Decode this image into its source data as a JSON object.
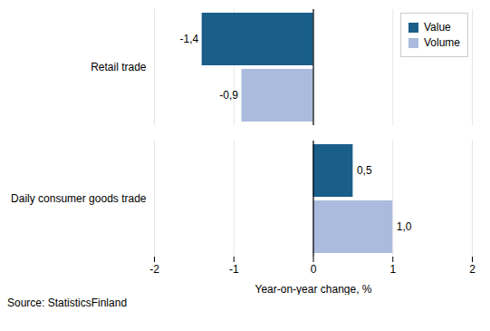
{
  "chart_data": {
    "type": "bar",
    "orientation": "horizontal",
    "categories": [
      "Retail trade",
      "Daily consumer goods trade"
    ],
    "series": [
      {
        "name": "Value",
        "color": "#1A5E8A",
        "values": [
          -1.4,
          0.5
        ],
        "value_labels": [
          "-1,4",
          "0,5"
        ]
      },
      {
        "name": "Volume",
        "color": "#AABBDD",
        "values": [
          -0.9,
          1.0
        ],
        "value_labels": [
          "-0,9",
          "1,0"
        ]
      }
    ],
    "xlabel": "Year-on-year change, %",
    "xlim": [
      -2,
      2
    ],
    "xticks": [
      -2,
      -1,
      0,
      1,
      2
    ],
    "grid": true,
    "legend": "upper right",
    "data_labels": true,
    "caption": "Source: StatisticsFinland"
  }
}
